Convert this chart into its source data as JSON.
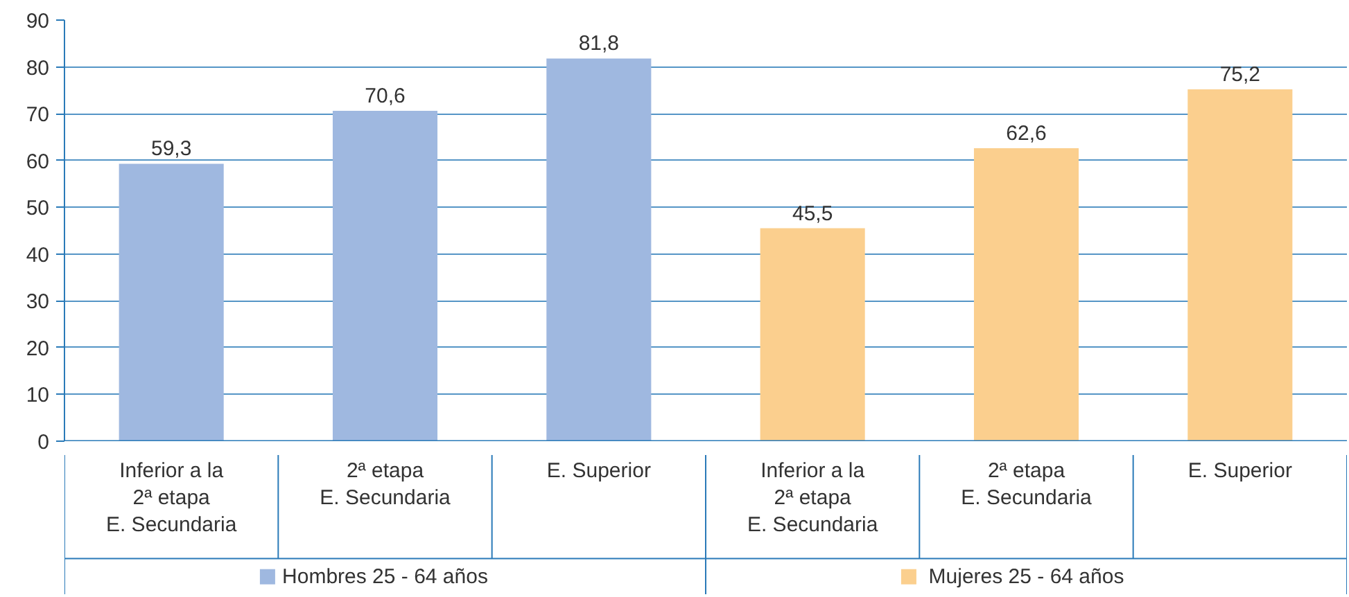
{
  "chart_data": {
    "type": "bar",
    "categories": [
      "Inferior a la\n2ª etapa\nE. Secundaria",
      "2ª etapa\nE. Secundaria",
      "E. Superior",
      "Inferior a la\n2ª etapa\nE. Secundaria",
      "2ª etapa\nE. Secundaria",
      "E. Superior"
    ],
    "series": [
      {
        "name": "Hombres 25 - 64 años",
        "color": "#9fb8e0",
        "values": [
          59.3,
          70.6,
          81.8,
          null,
          null,
          null
        ],
        "value_labels": [
          "59,3",
          "70,6",
          "81,8",
          null,
          null,
          null
        ]
      },
      {
        "name": "Mujeres 25 - 64 años",
        "color": "#fbcf8e",
        "values": [
          null,
          null,
          null,
          45.5,
          62.6,
          75.2
        ],
        "value_labels": [
          null,
          null,
          null,
          "45,5",
          "62,6",
          "75,2"
        ]
      }
    ],
    "ylim": [
      0,
      90
    ],
    "yticks": [
      0,
      10,
      20,
      30,
      40,
      50,
      60,
      70,
      80,
      90
    ],
    "grid": "y",
    "legend": "bottom"
  }
}
